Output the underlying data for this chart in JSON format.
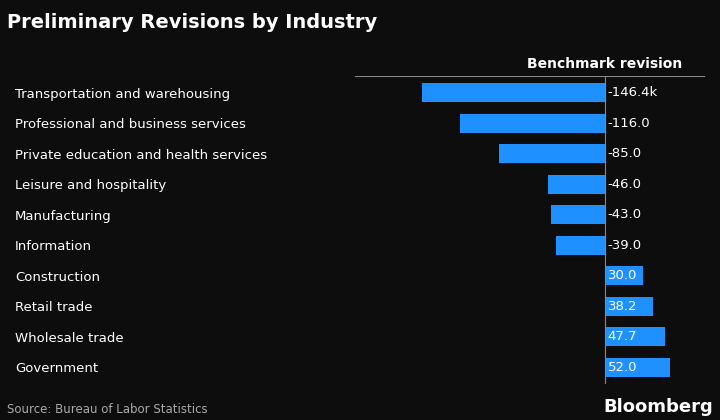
{
  "title": "Preliminary Revisions by Industry",
  "column_header": "Benchmark revision",
  "source": "Source: Bureau of Labor Statistics",
  "watermark": "Bloomberg",
  "categories": [
    "Transportation and warehousing",
    "Professional and business services",
    "Private education and health services",
    "Leisure and hospitality",
    "Manufacturing",
    "Information",
    "Construction",
    "Retail trade",
    "Wholesale trade",
    "Government"
  ],
  "values": [
    -146.4,
    -116.0,
    -85.0,
    -46.0,
    -43.0,
    -39.0,
    30.0,
    38.2,
    47.7,
    52.0
  ],
  "labels": [
    "-146.4k",
    "-116.0",
    "-85.0",
    "-46.0",
    "-43.0",
    "-39.0",
    "30.0",
    "38.2",
    "47.7",
    "52.0"
  ],
  "bar_color": "#1E90FF",
  "background_color": "#0d0d0d",
  "text_color": "#ffffff",
  "title_fontsize": 14,
  "label_fontsize": 9.5,
  "header_fontsize": 10,
  "source_fontsize": 8.5,
  "watermark_fontsize": 13,
  "xlim": [
    -200,
    80
  ]
}
